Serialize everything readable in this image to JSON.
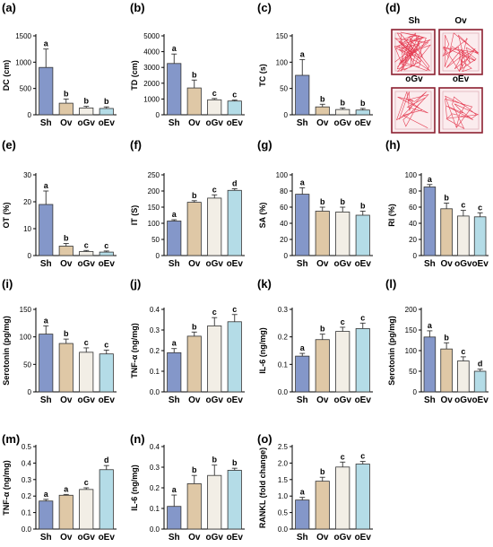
{
  "colors": {
    "Sh": "#8497c9",
    "Ov": "#dfc8a6",
    "oGv": "#f2eee6",
    "oEv": "#b4dce7",
    "maze_border": "#8c2131",
    "maze_path": "#e0213a"
  },
  "categories": [
    "Sh",
    "Ov",
    "oGv",
    "oEv"
  ],
  "maze_panel": {
    "letter": "(d)",
    "labels": [
      "Sh",
      "Ov",
      "oGv",
      "oEv"
    ]
  },
  "chart_data": [
    {
      "letter": "(a)",
      "type": "bar",
      "ylabel": "DC (cm)",
      "ylim": [
        0,
        1500
      ],
      "yticks": [
        0,
        500,
        1000,
        1500
      ],
      "values": [
        900,
        220,
        130,
        120
      ],
      "errors": [
        350,
        80,
        30,
        30
      ],
      "sig": [
        "a",
        "b",
        "b",
        "b"
      ]
    },
    {
      "letter": "(b)",
      "type": "bar",
      "ylabel": "TD (cm)",
      "ylim": [
        0,
        5000
      ],
      "yticks": [
        0,
        1000,
        2000,
        3000,
        4000,
        5000
      ],
      "values": [
        3250,
        1700,
        950,
        870
      ],
      "errors": [
        600,
        500,
        80,
        60
      ],
      "sig": [
        "a",
        "b",
        "c",
        "c"
      ]
    },
    {
      "letter": "(c)",
      "type": "bar",
      "ylabel": "TC (s)",
      "ylim": [
        0,
        150
      ],
      "yticks": [
        0,
        50,
        100,
        150
      ],
      "values": [
        75,
        15,
        10,
        9
      ],
      "errors": [
        30,
        5,
        3,
        3
      ],
      "sig": [
        "a",
        "b",
        "b",
        "b"
      ]
    },
    {
      "letter": "(e)",
      "type": "bar",
      "ylabel": "OT (%)",
      "ylim": [
        0,
        30
      ],
      "yticks": [
        0,
        10,
        20,
        30
      ],
      "values": [
        19,
        3.5,
        1.5,
        1.3
      ],
      "errors": [
        5,
        1,
        0.4,
        0.4
      ],
      "sig": [
        "a",
        "b",
        "c",
        "c"
      ]
    },
    {
      "letter": "(f)",
      "type": "bar",
      "ylabel": "IT (S)",
      "ylim": [
        0,
        250
      ],
      "yticks": [
        0,
        50,
        100,
        150,
        200,
        250
      ],
      "values": [
        107,
        165,
        178,
        202
      ],
      "errors": [
        4,
        5,
        10,
        5
      ],
      "sig": [
        "a",
        "b",
        "c",
        "d"
      ]
    },
    {
      "letter": "(g)",
      "type": "bar",
      "ylabel": "SA (%)",
      "ylim": [
        0,
        100
      ],
      "yticks": [
        0,
        20,
        40,
        60,
        80,
        100
      ],
      "values": [
        76,
        55,
        54,
        50
      ],
      "errors": [
        8,
        5,
        6,
        5
      ],
      "sig": [
        "a",
        "b",
        "b",
        "b"
      ]
    },
    {
      "letter": "(h)",
      "type": "bar",
      "ylabel": "RI (%)",
      "ylim": [
        0,
        100
      ],
      "yticks": [
        0,
        20,
        40,
        60,
        80,
        100
      ],
      "values": [
        85,
        58,
        49,
        48
      ],
      "errors": [
        3,
        7,
        7,
        5
      ],
      "sig": [
        "a",
        "b",
        "c",
        "c"
      ]
    },
    {
      "letter": "(i)",
      "type": "bar",
      "ylabel": "Serotonin (pg/mg)",
      "ylim": [
        0,
        150
      ],
      "yticks": [
        0,
        50,
        100,
        150
      ],
      "values": [
        105,
        88,
        72,
        69
      ],
      "errors": [
        15,
        8,
        8,
        7
      ],
      "sig": [
        "a",
        "b",
        "c",
        "c"
      ]
    },
    {
      "letter": "(j)",
      "type": "bar",
      "ylabel": "TNF-α (ng/mg)",
      "ylim": [
        0,
        0.4
      ],
      "yticks": [
        0.0,
        0.1,
        0.2,
        0.3,
        0.4
      ],
      "values": [
        0.19,
        0.27,
        0.32,
        0.34
      ],
      "errors": [
        0.02,
        0.02,
        0.04,
        0.035
      ],
      "sig": [
        "a",
        "b",
        "c",
        "c"
      ]
    },
    {
      "letter": "(k)",
      "type": "bar",
      "ylabel": "IL-6 (ng/mg)",
      "ylim": [
        0,
        0.3
      ],
      "yticks": [
        0.0,
        0.1,
        0.2,
        0.3
      ],
      "values": [
        0.13,
        0.19,
        0.22,
        0.23
      ],
      "errors": [
        0.01,
        0.02,
        0.015,
        0.02
      ],
      "sig": [
        "a",
        "b",
        "c",
        "c"
      ]
    },
    {
      "letter": "(l)",
      "type": "bar",
      "ylabel": "Serotonin (pg/mg)",
      "ylim": [
        0,
        200
      ],
      "yticks": [
        0,
        50,
        100,
        150,
        200
      ],
      "values": [
        133,
        104,
        75,
        50
      ],
      "errors": [
        15,
        15,
        10,
        5
      ],
      "sig": [
        "a",
        "b",
        "c",
        "d"
      ]
    },
    {
      "letter": "(m)",
      "type": "bar",
      "ylabel": "TNF-α (ng/mg)",
      "ylim": [
        0,
        0.5
      ],
      "yticks": [
        0.0,
        0.1,
        0.2,
        0.3,
        0.4,
        0.5
      ],
      "values": [
        0.17,
        0.205,
        0.24,
        0.36
      ],
      "errors": [
        0.01,
        0.005,
        0.01,
        0.025
      ],
      "sig": [
        "a",
        "a",
        "c",
        "d"
      ]
    },
    {
      "letter": "(n)",
      "type": "bar",
      "ylabel": "IL-6 (ng/mg)",
      "ylim": [
        0,
        0.4
      ],
      "yticks": [
        0.0,
        0.1,
        0.2,
        0.3,
        0.4
      ],
      "values": [
        0.11,
        0.22,
        0.26,
        0.285
      ],
      "errors": [
        0.055,
        0.04,
        0.05,
        0.01
      ],
      "sig": [
        "a",
        "b",
        "b",
        "b"
      ]
    },
    {
      "letter": "(o)",
      "type": "bar",
      "ylabel": "RANKL (fold change)",
      "ylim": [
        0,
        2.5
      ],
      "yticks": [
        0.0,
        0.5,
        1.0,
        1.5,
        2.0,
        2.5
      ],
      "values": [
        0.88,
        1.45,
        1.88,
        1.97
      ],
      "errors": [
        0.08,
        0.12,
        0.15,
        0.08
      ],
      "sig": [
        "a",
        "b",
        "c",
        "c"
      ]
    }
  ]
}
